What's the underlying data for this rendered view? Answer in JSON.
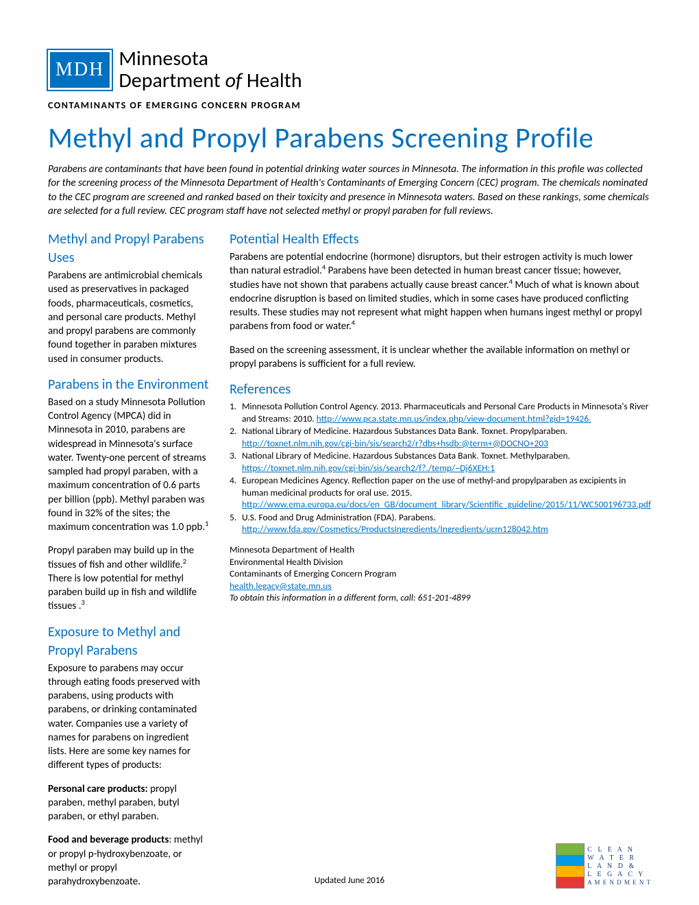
{
  "logo": {
    "block": "MDH",
    "line1": "Minnesota",
    "line2_a": "Department ",
    "line2_of": "of",
    "line2_b": " Health"
  },
  "program_label": "CONTAMINANTS OF EMERGING CONCERN PROGRAM",
  "title": "Methyl and Propyl Parabens Screening Profile",
  "intro": "Parabens are contaminants that have been found in potential drinking water sources in Minnesota. The information in this profile was collected for the screening process of the Minnesota Department of Health's Contaminants of Emerging Concern (CEC) program. The chemicals nominated to the CEC program are screened and ranked based on their toxicity and presence in Minnesota waters. Based on these rankings, some chemicals are selected for a full review. CEC program staff have not selected methyl or propyl paraben for full reviews.",
  "left": {
    "h_uses": "Methyl and Propyl Parabens Uses",
    "p_uses": "Parabens are antimicrobial chemicals used as preservatives in packaged foods, pharmaceuticals, cosmetics, and personal care products. Methyl and propyl parabens are commonly found together in paraben mixtures used in consumer products.",
    "h_env": "Parabens in the Environment",
    "p_env1_a": "Based on a study Minnesota Pollution Control Agency (MPCA) did in Minnesota in 2010, parabens are widespread in Minnesota's surface water. Twenty-one percent of streams sampled had propyl paraben, with a maximum concentration of 0.6 parts per billion (ppb). Methyl paraben was found in 32% of the sites; the maximum concentration was 1.0 ppb.",
    "p_env1_sup": "1",
    "p_env2_a": "Propyl paraben may build up in the tissues of fish and other wildlife.",
    "p_env2_sup1": "2",
    "p_env2_b": " There is low potential for methyl paraben build up in fish and wildlife tissues .",
    "p_env2_sup2": "3",
    "h_exp": "Exposure to Methyl and Propyl Parabens",
    "p_exp1": "Exposure to parabens may occur through eating foods preserved with parabens, using products with parabens, or drinking contaminated water. Companies use a variety of names for parabens on ingredient lists. Here are some key names for different types of products:",
    "p_exp2_label": "Personal care products:",
    "p_exp2_body": " propyl paraben, methyl paraben, butyl paraben, or ethyl paraben.",
    "p_exp3_label": "Food and beverage products",
    "p_exp3_body": ": methyl or propyl p-hydroxybenzoate, or methyl or propyl parahydroxybenzoate."
  },
  "right": {
    "h_health": "Potential Health Effects",
    "p_h1_a": "Parabens are potential endocrine (hormone) disruptors, but their estrogen activity is much lower than natural estradiol.",
    "p_h1_sup1": "4",
    "p_h1_b": " Parabens have been detected in human breast cancer tissue; however, studies have not shown that parabens actually cause breast cancer.",
    "p_h1_sup2": "4",
    "p_h1_c": " Much of what is known about endocrine disruption is based on limited studies, which in some cases have produced conflicting results. These studies may not represent what might happen when humans ingest methyl or propyl parabens from food or water.",
    "p_h1_sup3": "4",
    "p_h2": "Based on the screening assessment, it is unclear whether the available information on methyl or propyl parabens is sufficient for a full review.",
    "h_refs": "References",
    "refs": [
      {
        "n": "1.",
        "body": "Minnesota Pollution Control Agency. 2013. Pharmaceuticals and Personal Care Products in Minnesota's River and Streams: 2010. ",
        "link": "http://www.pca.state.mn.us/index.php/view-document.html?gid=19426."
      },
      {
        "n": "2.",
        "body": "National Library of Medicine. Hazardous Substances Data Bank. Toxnet. Propylparaben. ",
        "link": "http://toxnet.nlm.nih.gov/cgi-bin/sis/search2/r?dbs+hsdb:@term+@DOCNO+203"
      },
      {
        "n": "3.",
        "body": "National Library of Medicine. Hazardous Substances Data Bank. Toxnet. Methylparaben. ",
        "link": "https://toxnet.nlm.nih.gov/cgi-bin/sis/search2/f?./temp/~Dj6XEH:1"
      },
      {
        "n": "4.",
        "body": "European Medicines Agency. Reflection paper on the use of methyl-and propylparaben as excipients in human medicinal products for oral use. 2015. ",
        "link": "http://www.ema.europa.eu/docs/en_GB/document_library/Scientific_guideline/2015/11/WC500196733.pdf"
      },
      {
        "n": "5.",
        "body": "U.S. Food and Drug Administration (FDA). Parabens. ",
        "link": "http://www.fda.gov/Cosmetics/ProductsIngredients/Ingredients/ucm128042.htm"
      }
    ],
    "contact": {
      "l1": "Minnesota Department of Health",
      "l2": "Environmental Health Division",
      "l3": "Contaminants of Emerging Concern Program",
      "email": "health.legacy@state.mn.us",
      "l5": "To obtain this information in a different form, call: 651-201-4899"
    }
  },
  "footer_date": "Updated June 2016",
  "legacy": {
    "l1": "C L E A N",
    "l2": "W A T E R",
    "l3": "L A N D  &",
    "l4": "L E G A C Y",
    "l5": "A M E N D M E N T"
  }
}
